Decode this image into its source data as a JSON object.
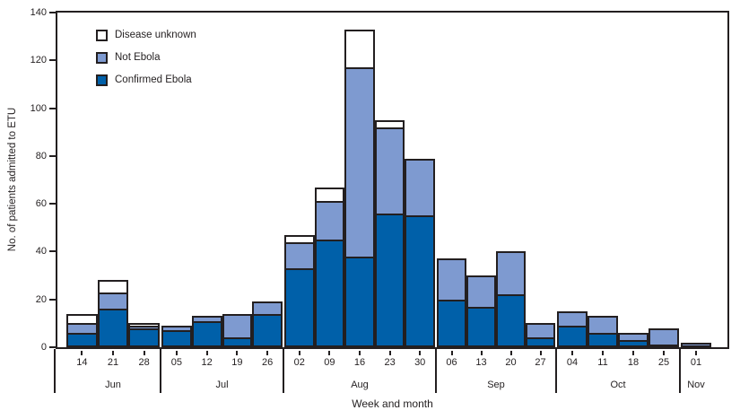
{
  "chart_data": {
    "type": "bar",
    "stacked": true,
    "title": "",
    "xlabel": "Week and month",
    "ylabel": "No. of patients admitted to ETU",
    "ylim": [
      0,
      140
    ],
    "ytick_step": 20,
    "grid": false,
    "legend_position": "top-left-inside",
    "colors": {
      "axis": "#231f20",
      "outline": "#231f20",
      "background": "#ffffff"
    },
    "months": [
      {
        "label": "Jun",
        "weeks": [
          "14",
          "21",
          "28"
        ]
      },
      {
        "label": "Jul",
        "weeks": [
          "05",
          "12",
          "19",
          "26"
        ]
      },
      {
        "label": "Aug",
        "weeks": [
          "02",
          "09",
          "16",
          "23",
          "30"
        ]
      },
      {
        "label": "Sep",
        "weeks": [
          "06",
          "13",
          "20",
          "27"
        ]
      },
      {
        "label": "Oct",
        "weeks": [
          "04",
          "11",
          "18",
          "25"
        ]
      },
      {
        "label": "Nov",
        "weeks": [
          "01"
        ]
      }
    ],
    "categories": [
      "Jun 14",
      "Jun 21",
      "Jun 28",
      "Jul 05",
      "Jul 12",
      "Jul 19",
      "Jul 26",
      "Aug 02",
      "Aug 09",
      "Aug 16",
      "Aug 23",
      "Aug 30",
      "Sep 06",
      "Sep 13",
      "Sep 20",
      "Sep 27",
      "Oct 04",
      "Oct 11",
      "Oct 18",
      "Oct 25",
      "Nov 01"
    ],
    "series": [
      {
        "name": "Confirmed Ebola",
        "color": "#0060a9",
        "values": [
          6,
          16,
          8,
          7,
          11,
          4,
          14,
          33,
          45,
          38,
          56,
          55,
          20,
          17,
          22,
          4,
          9,
          6,
          3,
          1,
          0
        ]
      },
      {
        "name": "Not Ebola",
        "color": "#7e9ad0",
        "values": [
          4,
          7,
          1,
          2,
          2,
          10,
          5,
          11,
          16,
          79,
          36,
          24,
          17,
          13,
          18,
          6,
          6,
          7,
          3,
          7,
          1
        ]
      },
      {
        "name": "Disease unknown",
        "color": "#ffffff",
        "values": [
          4,
          5,
          1,
          0,
          0,
          0,
          0,
          3,
          6,
          16,
          3,
          0,
          0,
          0,
          0,
          0,
          0,
          0,
          0,
          0,
          0
        ]
      }
    ],
    "legend": [
      {
        "label": "Disease unknown",
        "color": "#ffffff"
      },
      {
        "label": "Not Ebola",
        "color": "#7e9ad0"
      },
      {
        "label": "Confirmed Ebola",
        "color": "#0060a9"
      }
    ]
  }
}
